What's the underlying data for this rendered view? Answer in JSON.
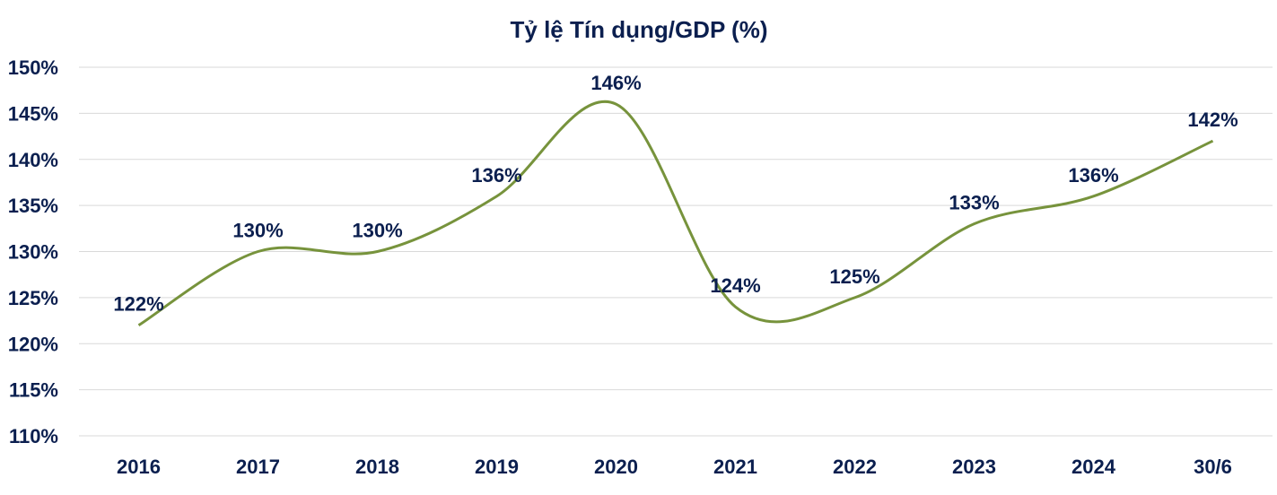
{
  "chart_data": {
    "type": "line",
    "title": "Tỷ lệ Tín dụng/GDP (%)",
    "xlabel": "",
    "ylabel": "",
    "categories": [
      "2016",
      "2017",
      "2018",
      "2019",
      "2020",
      "2021",
      "2022",
      "2023",
      "2024",
      "30/6"
    ],
    "series": [
      {
        "values": [
          122,
          130,
          130,
          136,
          146,
          124,
          125,
          133,
          136,
          142
        ],
        "data_labels": [
          "122%",
          "130%",
          "130%",
          "136%",
          "146%",
          "124%",
          "125%",
          "133%",
          "136%",
          "142%"
        ],
        "color": "#77933c"
      }
    ],
    "ylim": [
      110,
      150
    ],
    "yticks": [
      110,
      115,
      120,
      125,
      130,
      135,
      140,
      145,
      150
    ],
    "ytick_labels": [
      "110%",
      "115%",
      "120%",
      "125%",
      "130%",
      "135%",
      "140%",
      "145%",
      "150%"
    ],
    "grid": true,
    "smooth": true,
    "legend": "none"
  },
  "colors": {
    "text": "#0b1f4f",
    "grid": "#d9d9d9",
    "line": "#77933c"
  }
}
